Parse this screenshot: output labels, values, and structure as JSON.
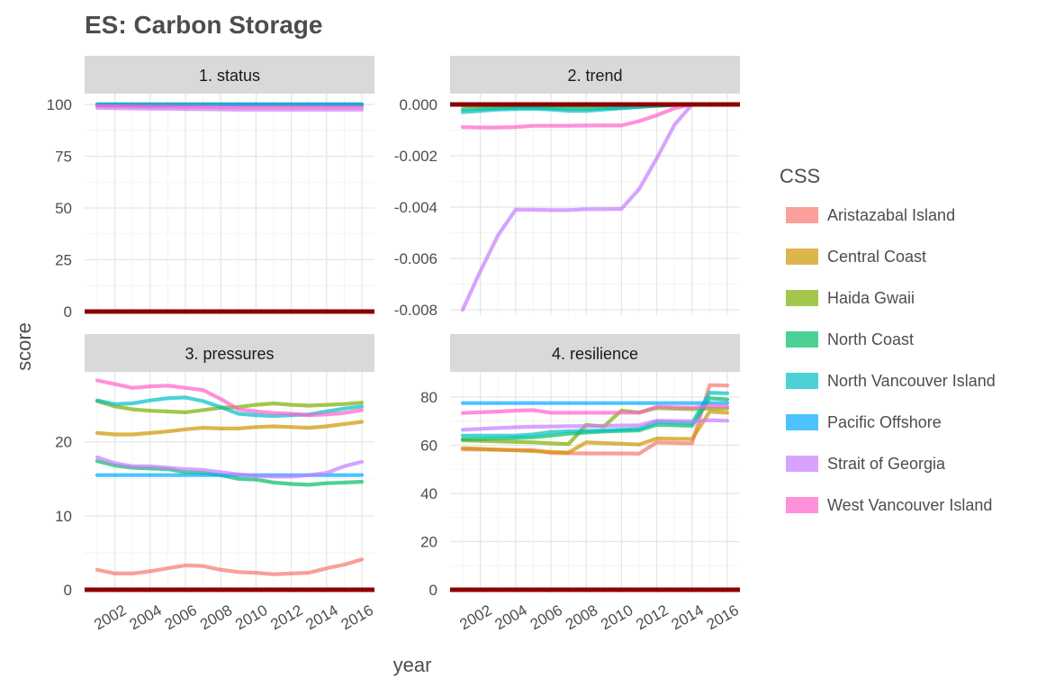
{
  "chart_data": {
    "type": "line",
    "title": "ES: Carbon Storage",
    "xlabel": "year",
    "ylabel": "score",
    "legend": {
      "title": "CSS",
      "placement": "right"
    },
    "grid": true,
    "x": [
      2001,
      2002,
      2003,
      2004,
      2005,
      2006,
      2007,
      2008,
      2009,
      2010,
      2011,
      2012,
      2013,
      2014,
      2015,
      2016
    ],
    "x_ticks": [
      "2002",
      "2004",
      "2006",
      "2008",
      "2010",
      "2012",
      "2014",
      "2016"
    ],
    "series_names": [
      "Aristazabal Island",
      "Central Coast",
      "Haida Gwaii",
      "North Coast",
      "North Vancouver Island",
      "Pacific Offshore",
      "Strait of Georgia",
      "West Vancouver Island"
    ],
    "colors": [
      "#F8766D",
      "#CD9600",
      "#7CAE00",
      "#00BE67",
      "#00BFC4",
      "#00A9FF",
      "#C77CFF",
      "#FF61CC"
    ],
    "reference_line_color": "#8B0000",
    "facets": [
      {
        "label": "1. status",
        "ylim": [
          0,
          100
        ],
        "y_ticks": [
          "0",
          "25",
          "50",
          "75",
          "100"
        ],
        "reference_value": 0,
        "series": [
          {
            "name": "Aristazabal Island",
            "values": [
              100,
              100,
              100,
              100,
              100,
              100,
              100,
              100,
              100,
              100,
              100,
              100,
              100,
              100,
              100,
              100
            ]
          },
          {
            "name": "Central Coast",
            "values": [
              100,
              100,
              100,
              100,
              100,
              100,
              100,
              100,
              100,
              100,
              100,
              100,
              100,
              100,
              100,
              100
            ]
          },
          {
            "name": "Haida Gwaii",
            "values": [
              100,
              100,
              100,
              100,
              100,
              100,
              100,
              100,
              100,
              100,
              100,
              100,
              100,
              100,
              100,
              100
            ]
          },
          {
            "name": "North Coast",
            "values": [
              100,
              100,
              100,
              100,
              100,
              100,
              100,
              100,
              100,
              100,
              100,
              100,
              100,
              100,
              100,
              100
            ]
          },
          {
            "name": "North Vancouver Island",
            "values": [
              99.8,
              99.8,
              99.8,
              99.8,
              99.8,
              99.8,
              99.8,
              99.8,
              99.8,
              99.8,
              99.8,
              99.8,
              99.8,
              99.8,
              99.8,
              99.8
            ]
          },
          {
            "name": "Pacific Offshore",
            "values": [
              100,
              100,
              100,
              100,
              100,
              100,
              100,
              100,
              100,
              100,
              100,
              100,
              100,
              100,
              100,
              100
            ]
          },
          {
            "name": "Strait of Georgia",
            "values": [
              98.3,
              98.2,
              98.1,
              98.0,
              97.9,
              97.8,
              97.7,
              97.6,
              97.5,
              97.5,
              97.5,
              97.5,
              97.5,
              97.5,
              97.5,
              97.5
            ]
          },
          {
            "name": "West Vancouver Island",
            "values": [
              99.3,
              99.2,
              99.1,
              99.0,
              99.0,
              98.9,
              98.9,
              98.8,
              98.8,
              98.8,
              98.8,
              98.8,
              98.8,
              98.8,
              98.8,
              98.8
            ]
          }
        ]
      },
      {
        "label": "2. trend",
        "ylim": [
          -0.008,
          0.0
        ],
        "y_ticks": [
          "-0.008",
          "-0.006",
          "-0.004",
          "-0.002",
          "0.000"
        ],
        "reference_value": 0,
        "series": [
          {
            "name": "Aristazabal Island",
            "values": [
              0,
              0,
              0,
              0,
              0,
              0,
              0,
              0,
              0,
              0,
              0,
              0,
              0,
              0,
              0,
              0
            ]
          },
          {
            "name": "Central Coast",
            "values": [
              0,
              0,
              0,
              0,
              0,
              0,
              0,
              0,
              0,
              0,
              0,
              0,
              0,
              0,
              0,
              0
            ]
          },
          {
            "name": "Haida Gwaii",
            "values": [
              -5e-05,
              -5e-05,
              -5e-05,
              -5e-05,
              -5e-05,
              -5e-05,
              -5e-05,
              -5e-05,
              -4e-05,
              -3e-05,
              -2e-05,
              -1e-05,
              0,
              0,
              0,
              0
            ]
          },
          {
            "name": "North Coast",
            "values": [
              -0.0002,
              -0.00017,
              -0.00015,
              -0.00013,
              -0.00013,
              -0.00015,
              -0.00016,
              -0.00017,
              -0.00015,
              -0.00013,
              -0.0001,
              -6e-05,
              -2e-05,
              0,
              0,
              0
            ]
          },
          {
            "name": "North Vancouver Island",
            "values": [
              -0.0003,
              -0.00025,
              -0.0002,
              -0.00018,
              -0.00017,
              -0.0002,
              -0.00025,
              -0.00025,
              -0.0002,
              -0.00015,
              -0.0001,
              -5e-05,
              -2e-05,
              0,
              0,
              0
            ]
          },
          {
            "name": "Pacific Offshore",
            "values": [
              0,
              0,
              0,
              0,
              0,
              0,
              0,
              0,
              0,
              0,
              0,
              0,
              0,
              0,
              0,
              0
            ]
          },
          {
            "name": "Strait of Georgia",
            "values": [
              -0.008,
              -0.0065,
              -0.0051,
              -0.0041,
              -0.0041,
              -0.00412,
              -0.00412,
              -0.00408,
              -0.00408,
              -0.00407,
              -0.0033,
              -0.0021,
              -0.0008,
              0,
              0,
              0
            ]
          },
          {
            "name": "West Vancouver Island",
            "values": [
              -0.00088,
              -0.0009,
              -0.0009,
              -0.00088,
              -0.00083,
              -0.00083,
              -0.00083,
              -0.00082,
              -0.00082,
              -0.00082,
              -0.00065,
              -0.00042,
              -0.00015,
              0,
              0,
              0
            ]
          }
        ]
      },
      {
        "label": "3. pressures",
        "ylim": [
          0,
          28
        ],
        "y_ticks": [
          "0",
          "10",
          "20"
        ],
        "reference_value": 0,
        "series": [
          {
            "name": "Aristazabal Island",
            "values": [
              2.7,
              2.2,
              2.2,
              2.5,
              2.9,
              3.3,
              3.2,
              2.7,
              2.4,
              2.3,
              2.1,
              2.2,
              2.3,
              2.9,
              3.4,
              4.1
            ]
          },
          {
            "name": "Central Coast",
            "values": [
              21.2,
              21.0,
              21.0,
              21.2,
              21.4,
              21.7,
              21.9,
              21.8,
              21.8,
              22.0,
              22.1,
              22.0,
              21.9,
              22.1,
              22.4,
              22.7
            ]
          },
          {
            "name": "Haida Gwaii",
            "values": [
              25.5,
              24.8,
              24.4,
              24.2,
              24.1,
              24.0,
              24.3,
              24.6,
              24.7,
              25.0,
              25.2,
              25.0,
              24.9,
              25.0,
              25.1,
              25.3
            ]
          },
          {
            "name": "North Coast",
            "values": [
              17.4,
              16.8,
              16.5,
              16.4,
              16.3,
              15.9,
              15.8,
              15.5,
              15.0,
              14.9,
              14.5,
              14.3,
              14.2,
              14.4,
              14.5,
              14.6
            ]
          },
          {
            "name": "North Vancouver Island",
            "values": [
              25.6,
              25.1,
              25.2,
              25.6,
              25.9,
              26.0,
              25.5,
              24.7,
              23.8,
              23.6,
              23.5,
              23.6,
              23.7,
              24.1,
              24.5,
              24.8
            ]
          },
          {
            "name": "Pacific Offshore",
            "values": [
              15.5,
              15.5,
              15.5,
              15.5,
              15.5,
              15.5,
              15.5,
              15.5,
              15.5,
              15.5,
              15.5,
              15.5,
              15.5,
              15.5,
              15.5,
              15.5
            ]
          },
          {
            "name": "Strait of Georgia",
            "values": [
              17.9,
              17.1,
              16.7,
              16.7,
              16.5,
              16.3,
              16.2,
              15.9,
              15.6,
              15.4,
              15.3,
              15.3,
              15.5,
              15.8,
              16.7,
              17.3
            ]
          },
          {
            "name": "West Vancouver Island",
            "values": [
              28.3,
              27.8,
              27.3,
              27.5,
              27.6,
              27.3,
              27.0,
              25.8,
              24.4,
              24.1,
              23.9,
              23.8,
              23.6,
              23.7,
              23.9,
              24.3
            ]
          }
        ]
      },
      {
        "label": "4. resilience",
        "ylim": [
          0,
          86
        ],
        "y_ticks": [
          "0",
          "20",
          "40",
          "60",
          "80"
        ],
        "reference_value": 0,
        "series": [
          {
            "name": "Aristazabal Island",
            "values": [
              58.3,
              58.2,
              58.1,
              58.0,
              58.0,
              56.8,
              56.7,
              56.6,
              56.6,
              56.6,
              56.5,
              61.2,
              61.0,
              60.8,
              85.0,
              84.8
            ]
          },
          {
            "name": "Central Coast",
            "values": [
              58.8,
              58.5,
              58.2,
              57.9,
              57.6,
              57.3,
              57.0,
              61.2,
              60.9,
              60.6,
              60.3,
              62.8,
              62.7,
              62.6,
              74.0,
              73.5
            ]
          },
          {
            "name": "Haida Gwaii",
            "values": [
              62.0,
              61.8,
              61.6,
              61.4,
              61.2,
              60.8,
              60.5,
              68.5,
              67.8,
              74.4,
              73.6,
              75.5,
              75.2,
              75.0,
              75.3,
              75.3
            ]
          },
          {
            "name": "North Coast",
            "values": [
              62.5,
              62.6,
              62.8,
              63.0,
              63.3,
              64.0,
              64.8,
              65.3,
              65.7,
              66.0,
              66.2,
              68.5,
              68.3,
              68.1,
              79.5,
              79.0
            ]
          },
          {
            "name": "North Vancouver Island",
            "values": [
              64.0,
              64.0,
              64.0,
              64.0,
              64.5,
              65.5,
              65.8,
              66.0,
              66.2,
              66.5,
              66.8,
              69.8,
              69.5,
              69.2,
              81.8,
              81.6
            ]
          },
          {
            "name": "Pacific Offshore",
            "values": [
              77.5,
              77.5,
              77.5,
              77.5,
              77.5,
              77.5,
              77.5,
              77.5,
              77.5,
              77.5,
              77.5,
              77.5,
              77.5,
              77.5,
              77.5,
              77.5
            ]
          },
          {
            "name": "Strait of Georgia",
            "values": [
              66.4,
              66.8,
              67.2,
              67.5,
              67.7,
              67.8,
              67.9,
              68.0,
              68.1,
              68.2,
              68.3,
              70.2,
              70.1,
              70.0,
              70.4,
              70.2
            ]
          },
          {
            "name": "West Vancouver Island",
            "values": [
              73.4,
              73.7,
              74.0,
              74.4,
              74.6,
              73.5,
              73.5,
              73.5,
              73.5,
              73.5,
              73.5,
              76.0,
              75.8,
              75.6,
              76.2,
              76.0
            ]
          }
        ]
      }
    ]
  }
}
